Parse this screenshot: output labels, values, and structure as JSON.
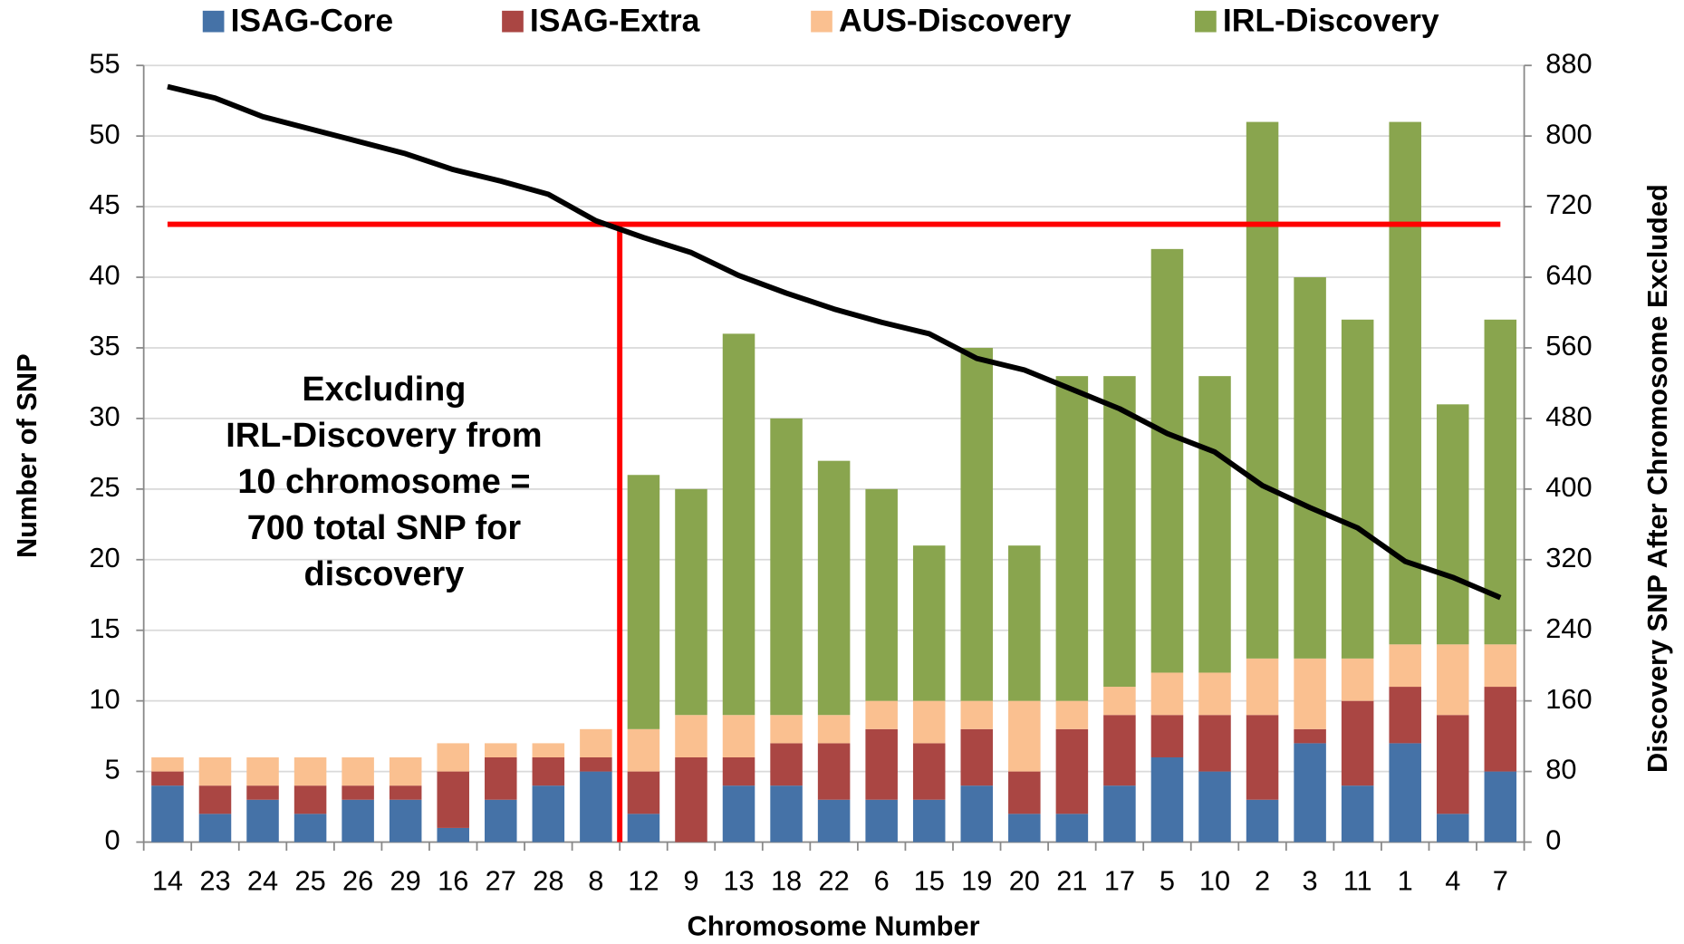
{
  "chart_data": {
    "type": "bar",
    "stacked": true,
    "x_label": "Chromosome Number",
    "y_label": "Number of SNP",
    "y2_label": "Discovery SNP After Chromosome Excluded",
    "annotation": [
      "Excluding",
      "IRL-Discovery from",
      "10 chromosome =",
      "700 total SNP for",
      "discovery"
    ],
    "categories": [
      "14",
      "23",
      "24",
      "25",
      "26",
      "29",
      "16",
      "27",
      "28",
      "8",
      "12",
      "9",
      "13",
      "18",
      "22",
      "6",
      "15",
      "19",
      "20",
      "21",
      "17",
      "5",
      "10",
      "2",
      "3",
      "11",
      "1",
      "4",
      "7"
    ],
    "series": [
      {
        "name": "ISAG-Core",
        "color": "#4572a7",
        "values": [
          4,
          2,
          3,
          2,
          3,
          3,
          1,
          3,
          4,
          5,
          2,
          0,
          4,
          4,
          3,
          3,
          3,
          4,
          2,
          2,
          4,
          6,
          5,
          3,
          7,
          4,
          7,
          2,
          5
        ]
      },
      {
        "name": "ISAG-Extra",
        "color": "#aa4643",
        "values": [
          1,
          2,
          1,
          2,
          1,
          1,
          4,
          3,
          2,
          1,
          3,
          6,
          2,
          3,
          4,
          5,
          4,
          4,
          3,
          6,
          5,
          3,
          4,
          6,
          1,
          6,
          4,
          7,
          6
        ]
      },
      {
        "name": "AUS-Discovery",
        "color": "#fac090",
        "values": [
          1,
          2,
          2,
          2,
          2,
          2,
          2,
          1,
          1,
          2,
          3,
          3,
          3,
          2,
          2,
          2,
          3,
          2,
          5,
          2,
          2,
          3,
          3,
          4,
          5,
          3,
          3,
          5,
          3
        ]
      },
      {
        "name": "IRL-Discovery",
        "color": "#89a54e",
        "values": [
          0,
          0,
          0,
          0,
          0,
          0,
          0,
          0,
          0,
          0,
          18,
          16,
          27,
          21,
          18,
          15,
          11,
          25,
          11,
          23,
          22,
          30,
          21,
          38,
          27,
          24,
          37,
          17,
          23
        ]
      },
      {
        "type": "line",
        "axis": "y2",
        "color": "#000000",
        "values": [
          856,
          843,
          822,
          808,
          794,
          780,
          762,
          749,
          734,
          704,
          685,
          668,
          642,
          622,
          604,
          589,
          576,
          548,
          535,
          513,
          491,
          463,
          442,
          404,
          379,
          356,
          318,
          300,
          277
        ]
      }
    ],
    "reference_line": {
      "axis": "y2",
      "value": 700,
      "color": "#ff0000"
    },
    "ylim": [
      0,
      55
    ],
    "yticks": [
      0,
      5,
      10,
      15,
      20,
      25,
      30,
      35,
      40,
      45,
      50,
      55
    ],
    "y2lim": [
      0,
      880
    ],
    "y2ticks": [
      0,
      80,
      160,
      240,
      320,
      400,
      480,
      560,
      640,
      720,
      800,
      880
    ],
    "grid": true,
    "legend": "top"
  }
}
